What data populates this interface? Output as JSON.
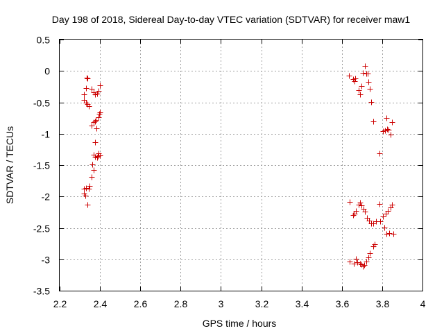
{
  "chart_data": {
    "type": "scatter",
    "title": "Day 198 of 2018, Sidereal Day-to-day VTEC variation (SDTVAR) for receiver maw1",
    "xlabel": "GPS time / hours",
    "ylabel": "SDTVAR / TECUs",
    "xlim": [
      2.2,
      4.0
    ],
    "ylim": [
      -3.5,
      0.5
    ],
    "xticks": [
      2.2,
      2.4,
      2.6,
      2.8,
      3.0,
      3.2,
      3.4,
      3.6,
      3.8,
      4.0
    ],
    "xtick_labels": [
      "2.2",
      "2.4",
      "2.6",
      "2.8",
      "3",
      "3.2",
      "3.4",
      "3.6",
      "3.8",
      "4"
    ],
    "yticks": [
      0.5,
      0.0,
      -0.5,
      -1.0,
      -1.5,
      -2.0,
      -2.5,
      -3.0,
      -3.5
    ],
    "ytick_labels": [
      "0.5",
      "0",
      "-0.5",
      "-1",
      "-1.5",
      "-2",
      "-2.5",
      "-3",
      "-3.5"
    ],
    "grid": true,
    "marker": "+",
    "colors": {
      "marker": "#cc0000",
      "grid": "#a0a0a0",
      "axis": "#000000"
    },
    "series": [
      {
        "name": "SDTVAR",
        "points": [
          [
            2.333,
            -0.11
          ],
          [
            2.339,
            -0.12
          ],
          [
            2.33,
            -0.27
          ],
          [
            2.321,
            -0.37
          ],
          [
            2.32,
            -0.46
          ],
          [
            2.33,
            -0.5
          ],
          [
            2.338,
            -0.53
          ],
          [
            2.343,
            -0.56
          ],
          [
            2.36,
            -0.28
          ],
          [
            2.369,
            -0.34
          ],
          [
            2.376,
            -0.37
          ],
          [
            2.386,
            -0.36
          ],
          [
            2.392,
            -0.32
          ],
          [
            2.4,
            -0.23
          ],
          [
            2.399,
            -0.66
          ],
          [
            2.395,
            -0.68
          ],
          [
            2.392,
            -0.74
          ],
          [
            2.379,
            -0.78
          ],
          [
            2.374,
            -0.8
          ],
          [
            2.367,
            -0.82
          ],
          [
            2.36,
            -0.87
          ],
          [
            2.381,
            -0.91
          ],
          [
            2.376,
            -1.14
          ],
          [
            2.37,
            -1.33
          ],
          [
            2.377,
            -1.37
          ],
          [
            2.386,
            -1.38
          ],
          [
            2.391,
            -1.36
          ],
          [
            2.394,
            -1.31
          ],
          [
            2.399,
            -1.35
          ],
          [
            2.361,
            -1.49
          ],
          [
            2.37,
            -1.58
          ],
          [
            2.36,
            -1.69
          ],
          [
            2.348,
            -1.83
          ],
          [
            2.346,
            -1.88
          ],
          [
            2.331,
            -1.86
          ],
          [
            2.321,
            -1.88
          ],
          [
            2.32,
            -1.95
          ],
          [
            2.326,
            -1.99
          ],
          [
            2.336,
            -2.13
          ],
          [
            3.636,
            -0.07
          ],
          [
            3.655,
            -0.13
          ],
          [
            3.662,
            -0.16
          ],
          [
            3.667,
            -0.12
          ],
          [
            3.685,
            -0.31
          ],
          [
            3.69,
            -0.37
          ],
          [
            3.697,
            -0.24
          ],
          [
            3.705,
            -0.03
          ],
          [
            3.716,
            0.08
          ],
          [
            3.72,
            -0.04
          ],
          [
            3.728,
            -0.04
          ],
          [
            3.731,
            -0.17
          ],
          [
            3.738,
            -0.28
          ],
          [
            3.747,
            -0.49
          ],
          [
            3.755,
            -0.8
          ],
          [
            3.787,
            -1.31
          ],
          [
            3.805,
            -0.96
          ],
          [
            3.815,
            -0.95
          ],
          [
            3.82,
            -0.75
          ],
          [
            3.825,
            -0.92
          ],
          [
            3.832,
            -0.94
          ],
          [
            3.842,
            -1.01
          ],
          [
            3.848,
            -0.82
          ],
          [
            3.64,
            -2.09
          ],
          [
            3.655,
            -2.3
          ],
          [
            3.664,
            -2.27
          ],
          [
            3.671,
            -2.23
          ],
          [
            3.683,
            -2.13
          ],
          [
            3.69,
            -2.1
          ],
          [
            3.696,
            -2.14
          ],
          [
            3.707,
            -2.2
          ],
          [
            3.716,
            -2.24
          ],
          [
            3.726,
            -2.34
          ],
          [
            3.735,
            -2.38
          ],
          [
            3.745,
            -2.43
          ],
          [
            3.757,
            -2.43
          ],
          [
            3.77,
            -2.39
          ],
          [
            3.785,
            -2.12
          ],
          [
            3.79,
            -2.4
          ],
          [
            3.803,
            -2.32
          ],
          [
            3.81,
            -2.49
          ],
          [
            3.817,
            -2.27
          ],
          [
            3.822,
            -2.59
          ],
          [
            3.829,
            -2.23
          ],
          [
            3.836,
            -2.58
          ],
          [
            3.84,
            -2.17
          ],
          [
            3.848,
            -2.13
          ],
          [
            3.855,
            -2.59
          ],
          [
            3.64,
            -3.04
          ],
          [
            3.659,
            -3.07
          ],
          [
            3.67,
            -2.99
          ],
          [
            3.677,
            -3.05
          ],
          [
            3.69,
            -3.07
          ],
          [
            3.698,
            -3.08
          ],
          [
            3.705,
            -3.11
          ],
          [
            3.712,
            -3.09
          ],
          [
            3.722,
            -3.04
          ],
          [
            3.731,
            -2.97
          ],
          [
            3.74,
            -2.9
          ],
          [
            3.754,
            -2.79
          ],
          [
            3.764,
            -2.76
          ]
        ]
      }
    ]
  }
}
